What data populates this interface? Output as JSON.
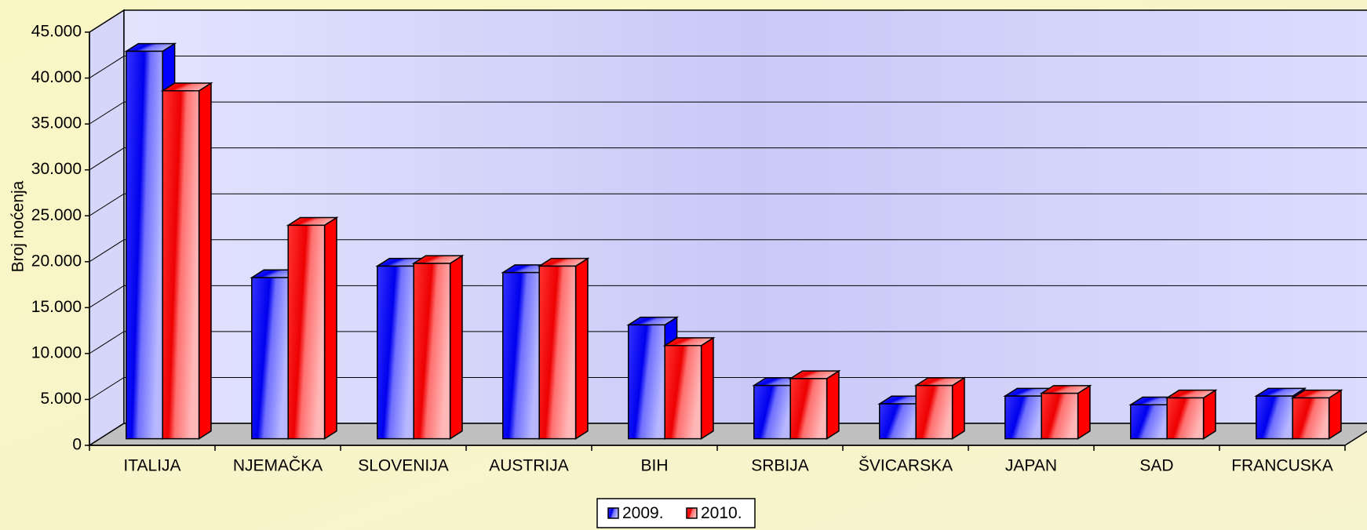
{
  "chart_data": {
    "type": "bar3d",
    "y_label": "Broj noćenja",
    "categories": [
      "ITALIJA",
      "NJEMAČKA",
      "SLOVENIJA",
      "AUSTRIJA",
      "BIH",
      "SRBIJA",
      "ŠVICARSKA",
      "JAPAN",
      "SAD",
      "FRANCUSKA"
    ],
    "series": [
      {
        "name": "2009.",
        "color": "#0000ff",
        "values": [
          42200,
          17550,
          18800,
          18100,
          12400,
          5800,
          3800,
          4650,
          3700,
          4650
        ]
      },
      {
        "name": "2010.",
        "color": "#ff0000",
        "values": [
          37900,
          23250,
          19100,
          18800,
          10150,
          6550,
          5800,
          4950,
          4450,
          4450
        ]
      }
    ],
    "ylim": [
      0,
      45000
    ],
    "yticks": [
      0,
      {
        "value": 5000,
        "label": "5.000"
      },
      {
        "value": 10000,
        "label": "10.000"
      },
      {
        "value": 15000,
        "label": "15.000"
      },
      {
        "value": 20000,
        "label": "20.000"
      },
      {
        "value": 25000,
        "label": "25.000"
      },
      {
        "value": 30000,
        "label": "30.000"
      },
      {
        "value": 35000,
        "label": "35.000"
      },
      {
        "value": 40000,
        "label": "40.000"
      },
      {
        "value": 45000,
        "label": "45.000"
      }
    ],
    "grid": true,
    "legend": "bottom"
  }
}
